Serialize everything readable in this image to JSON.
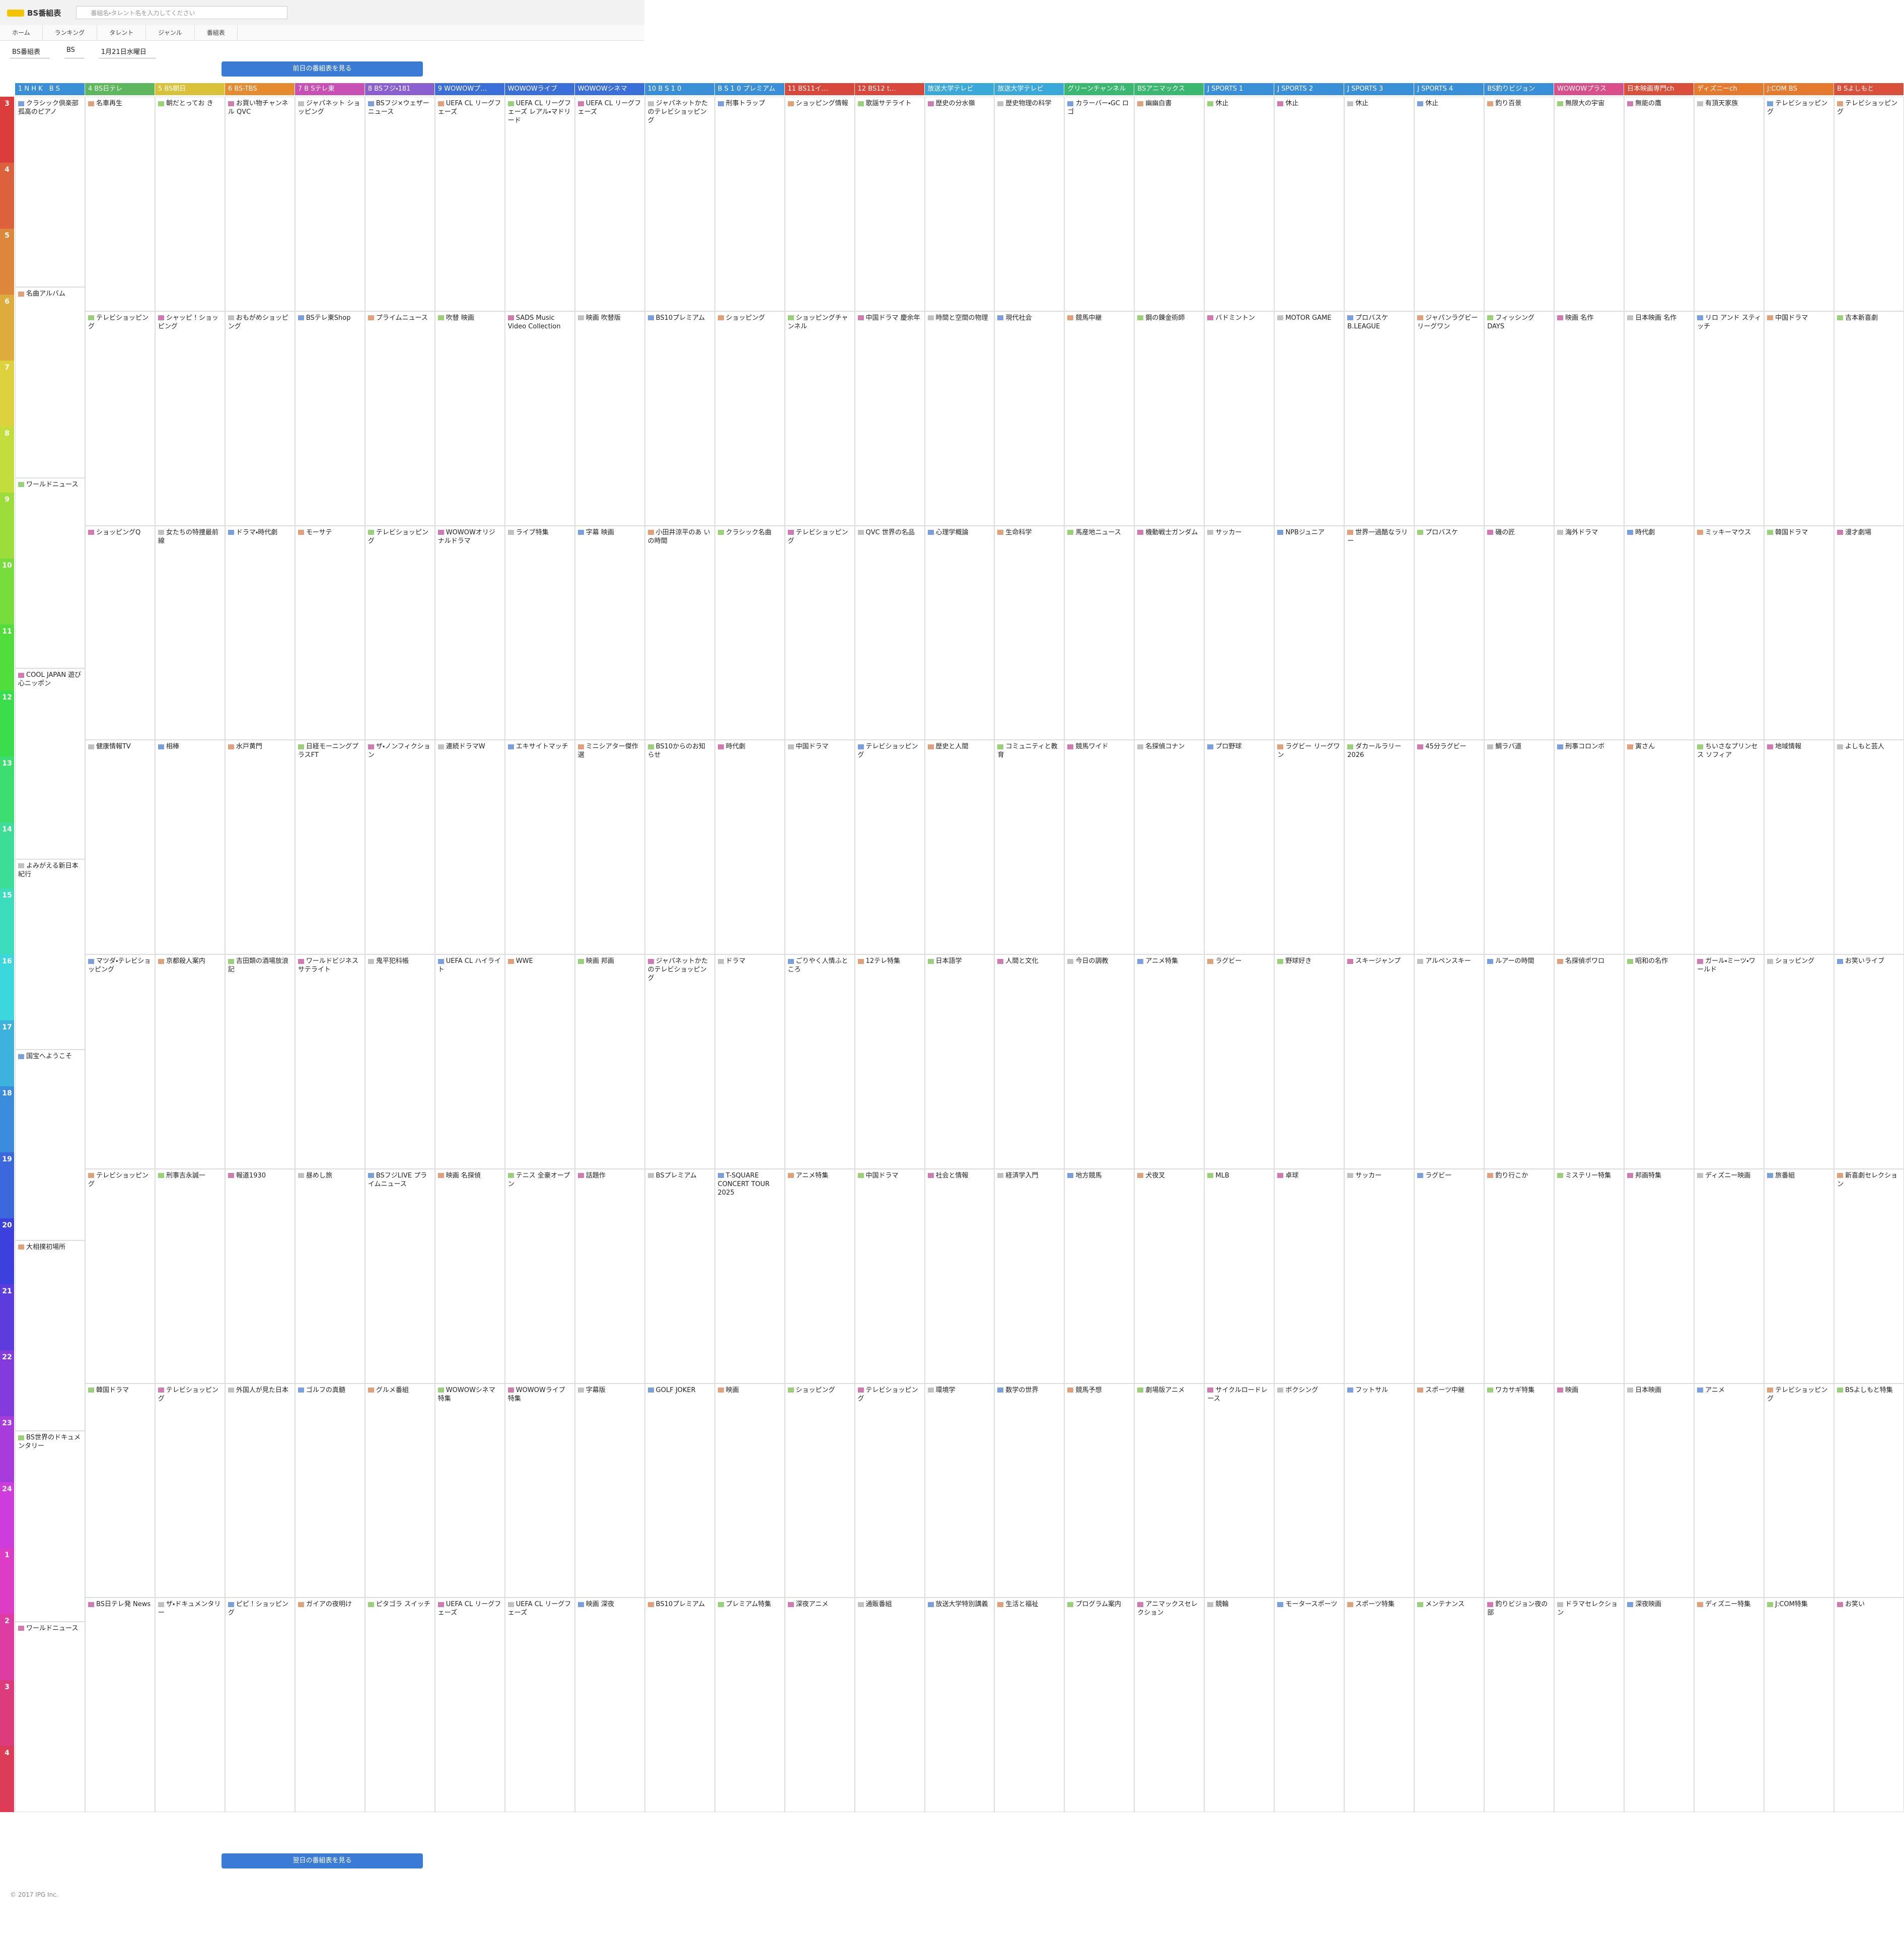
{
  "header": {
    "logo": "BS番組表",
    "search_placeholder": "番組名・タレント名を入力してください"
  },
  "nav": [
    "ホーム",
    "ランキング",
    "タレント",
    "ジャンル",
    "番組表"
  ],
  "selects": [
    "BS番組表",
    "BS",
    "1月21日水曜日"
  ],
  "prev_button": "前日の番組表を見る",
  "next_button": "翌日の番組表を見る",
  "footer": "© 2017 IPG Inc.",
  "hours": [
    3,
    4,
    5,
    6,
    7,
    8,
    9,
    10,
    11,
    12,
    13,
    14,
    15,
    16,
    17,
    18,
    19,
    20,
    21,
    22,
    23,
    24,
    1,
    2,
    3,
    4
  ],
  "channels": [
    {
      "name": "1 N H K　B S",
      "color": "#3a8fd9",
      "programs": [
        "クラシック倶楽部 孤高のピアノ",
        "名曲アルバム",
        "ワールドニュース",
        "COOL JAPAN 遊び心ニッポン",
        "よみがえる新日本紀行",
        "国宝へようこそ",
        "大相撲初場所",
        "BS世界のドキュメンタリー",
        "ワールドニュース"
      ]
    },
    {
      "name": "4 BS日テレ",
      "color": "#5db85d",
      "programs": [
        "名車再生",
        "テレビショッピング",
        "ショッピングQ",
        "健康情報TV",
        "マツダ・テレビショッピング",
        "テレビショッピング",
        "韓国ドラマ",
        "BS日テレ発 News"
      ]
    },
    {
      "name": "5 BS朝日",
      "color": "#d9c23a",
      "programs": [
        "朝だとってお き",
        "シャッピ！ショッピング",
        "女たちの特捜最前線",
        "相棒",
        "京都殺人案内",
        "刑事吉永誠一",
        "テレビショッピング",
        "ザ・ドキュメンタリー"
      ]
    },
    {
      "name": "6 BS-TBS",
      "color": "#e58a2e",
      "programs": [
        "お買い物チャンネル QVC",
        "おもがめショッピング",
        "ドラマ・時代劇",
        "水戸黄門",
        "吉田類の酒場放浪記",
        "報道1930",
        "外国人が見た日本",
        "ピピ！ショッピング"
      ]
    },
    {
      "name": "7 B Sテレ東",
      "color": "#c84fb3",
      "programs": [
        "ジャパネット ショッピング",
        "BSテレ東Shop",
        "モーサテ",
        "日経モーニングプラスFT",
        "ワールドビジネスサテライト",
        "昼めし旅",
        "ゴルフの真髄",
        "ガイアの夜明け"
      ]
    },
    {
      "name": "8 BSフジ・181",
      "color": "#8a5fd0",
      "programs": [
        "BSフジ×ウェザーニュース",
        "プライムニュース",
        "テレビショッピング",
        "ザ・ノンフィクション",
        "鬼平犯科帳",
        "BSフジLIVE プライムニュース",
        "グルメ番組",
        "ピタゴラ スイッチ"
      ]
    },
    {
      "name": "9 WOWOWプ…",
      "color": "#3a6fd9",
      "programs": [
        "UEFA CL リーグフェーズ",
        "吹替 映画",
        "WOWOWオリジナルドラマ",
        "連続ドラマW",
        "UEFA CL ハイライト",
        "映画 名探偵",
        "WOWOWシネマ特集",
        "UEFA CL リーグフェーズ"
      ]
    },
    {
      "name": "WOWOWライブ",
      "color": "#3a6fd9",
      "programs": [
        "UEFA CL リーグフェーズ レアル・マドリード",
        "SADS Music Video Collection",
        "ライブ特集",
        "エキサイトマッチ",
        "WWE",
        "テニス 全豪オープン",
        "WOWOWライブ特集",
        "UEFA CL リーグフェーズ"
      ]
    },
    {
      "name": "WOWOWシネマ",
      "color": "#3a6fd9",
      "programs": [
        "UEFA CL リーグフェーズ",
        "映画 吹替版",
        "字幕 映画",
        "ミニシアター傑作選",
        "映画 邦画",
        "話題作",
        "字幕版",
        "映画 深夜"
      ]
    },
    {
      "name": "10 B S 1 0",
      "color": "#3a8fd9",
      "programs": [
        "ジャパネットかたのテレビショッピング",
        "BS10プレミアム",
        "小田井涼平のあ いの時間",
        "BS10からのお知らせ",
        "ジャパネットかたのテレビショッピング",
        "BSプレミアム",
        "GOLF JOKER",
        "BS10プレミアム"
      ]
    },
    {
      "name": "B S 1 0 プレミアム",
      "color": "#3a8fd9",
      "programs": [
        "刑事トラップ",
        "ショッピング",
        "クラシック名曲",
        "時代劇",
        "ドラマ",
        "T-SQUARE CONCERT TOUR 2025",
        "映画",
        "プレミアム特集"
      ]
    },
    {
      "name": "11 BS11イ…",
      "color": "#d9473a",
      "programs": [
        "ショッピング情報",
        "ショッピングチャンネル",
        "テレビショッピング",
        "中国ドラマ",
        "ごりやく人情ふところ",
        "アニメ特集",
        "ショッピング",
        "深夜アニメ"
      ]
    },
    {
      "name": "12 BS12 t…",
      "color": "#d9473a",
      "programs": [
        "歌謡サテライト",
        "中国ドラマ 慶余年",
        "QVC 世界の名品",
        "テレビショッピング",
        "12テレ特集",
        "中国ドラマ",
        "テレビショッピング",
        "通販番組"
      ]
    },
    {
      "name": "放送大学テレビ",
      "color": "#3aa8d9",
      "programs": [
        "歴史の分水嶺",
        "時間と空間の物理",
        "心理学概論",
        "歴史と人間",
        "日本語学",
        "社会と情報",
        "環境学",
        "放送大学特別講義"
      ]
    },
    {
      "name": "放送大学テレビ",
      "color": "#3aa8d9",
      "programs": [
        "歴史物理の科学",
        "現代社会",
        "生命科学",
        "コミュニティと教育",
        "人間と文化",
        "経済学入門",
        "数学の世界",
        "生活と福祉"
      ]
    },
    {
      "name": "グリーンチャンネル",
      "color": "#3ab86f",
      "programs": [
        "カラーバー・GC ロゴ",
        "競馬中継",
        "馬産地ニュース",
        "競馬ワイド",
        "今日の調教",
        "地方競馬",
        "競馬予想",
        "プログラム案内"
      ]
    },
    {
      "name": "BSアニマックス",
      "color": "#3ab86f",
      "programs": [
        "幽幽白書",
        "鋼の錬金術師",
        "機動戦士ガンダム",
        "名探偵コナン",
        "アニメ特集",
        "犬夜叉",
        "劇場版アニメ",
        "アニマックスセレクション"
      ]
    },
    {
      "name": "J SPORTS 1",
      "color": "#3a8fd9",
      "programs": [
        "休止",
        "バドミントン",
        "サッカー",
        "プロ野球",
        "ラグビー",
        "MLB",
        "サイクルロードレース",
        "競輪"
      ]
    },
    {
      "name": "J SPORTS 2",
      "color": "#3a8fd9",
      "programs": [
        "休止",
        "MOTOR GAME",
        "NPBジュニア",
        "ラグビー リーグワン",
        "野球好き",
        "卓球",
        "ボクシング",
        "モータースポーツ"
      ]
    },
    {
      "name": "J SPORTS 3",
      "color": "#3a8fd9",
      "programs": [
        "休止",
        "プロバスケ B.LEAGUE",
        "世界一過酷なラリー",
        "ダカールラリー2026",
        "スキージャンプ",
        "サッカー",
        "フットサル",
        "スポーツ特集"
      ]
    },
    {
      "name": "J SPORTS 4",
      "color": "#3a8fd9",
      "programs": [
        "休止",
        "ジャパンラグビーリーグワン",
        "プロバスケ",
        "45分ラグビー",
        "アルペンスキー",
        "ラグビー",
        "スポーツ中継",
        "メンテナンス"
      ]
    },
    {
      "name": "BS釣りビジョン",
      "color": "#3a8fd9",
      "programs": [
        "釣り百景",
        "フィッシングDAYS",
        "磯の匠",
        "鯛ラバ道",
        "ルアーの時間",
        "釣り行こか",
        "ワカサギ特集",
        "釣りビジョン夜の部"
      ]
    },
    {
      "name": "WOWOWプラス",
      "color": "#d94f8a",
      "programs": [
        "無限大の宇宙",
        "映画 名作",
        "海外ドラマ",
        "刑事コロンボ",
        "名探偵ポワロ",
        "ミステリー特集",
        "映画",
        "ドラマセレクション"
      ]
    },
    {
      "name": "日本映画専門ch",
      "color": "#d94f3a",
      "programs": [
        "無能の鷹",
        "日本映画 名作",
        "時代劇",
        "寅さん",
        "昭和の名作",
        "邦画特集",
        "日本映画",
        "深夜映画"
      ]
    },
    {
      "name": "ディズニーch",
      "color": "#e57a2e",
      "programs": [
        "有頂天家族",
        "リロ アンド スティッチ",
        "ミッキーマウス",
        "ちいさなプリンセス ソフィア",
        "ガール・ミーツ・ワールド",
        "ディズニー映画",
        "アニメ",
        "ディズニー特集"
      ]
    },
    {
      "name": "J:COM BS",
      "color": "#e57a2e",
      "programs": [
        "テレビショッピング",
        "中国ドラマ",
        "韓国ドラマ",
        "地域情報",
        "ショッピング",
        "旅番組",
        "テレビショッピング",
        "J:COM特集"
      ]
    },
    {
      "name": "B Sよしもと",
      "color": "#d94f3a",
      "programs": [
        "テレビショッピング",
        "吉本新喜劇",
        "漫才劇場",
        "よしもと芸人",
        "お笑いライブ",
        "新喜劇セレクション",
        "BSよしもと特集",
        "お笑い"
      ]
    }
  ]
}
